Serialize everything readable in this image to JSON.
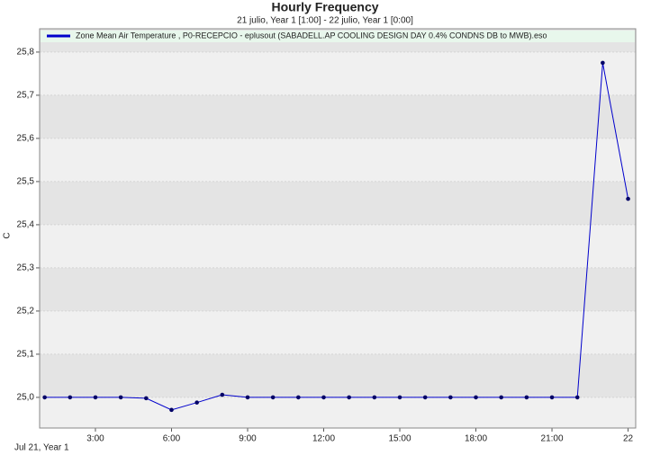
{
  "chart_data": {
    "type": "line",
    "title": "Hourly Frequency",
    "subtitle": "21 julio, Year 1 [1:00] - 22 julio, Year 1 [0:00]",
    "y_label": "C",
    "x_footer": "Jul 21, Year 1",
    "x": [
      1,
      2,
      3,
      4,
      5,
      6,
      7,
      8,
      9,
      10,
      11,
      12,
      13,
      14,
      15,
      16,
      17,
      18,
      19,
      20,
      21,
      22,
      23,
      24
    ],
    "series": [
      {
        "name": "Zone Mean Air Temperature , P0-RECEPCIO - eplusout (SABADELL.AP COOLING DESIGN DAY 0.4% CONDNS DB to MWB).eso",
        "color": "#0000cc",
        "values": [
          25.0,
          25.0,
          25.0,
          25.0,
          24.998,
          24.971,
          24.988,
          25.006,
          25.0,
          25.0,
          25.0,
          25.0,
          25.0,
          25.0,
          25.0,
          25.0,
          25.0,
          25.0,
          25.0,
          25.0,
          25.0,
          25.0,
          25.775,
          25.46
        ]
      }
    ],
    "xlim": [
      0.8,
      24.3
    ],
    "xticks": [
      {
        "value": 3,
        "label": "3:00"
      },
      {
        "value": 6,
        "label": "6:00"
      },
      {
        "value": 9,
        "label": "9:00"
      },
      {
        "value": 12,
        "label": "12:00"
      },
      {
        "value": 15,
        "label": "15:00"
      },
      {
        "value": 18,
        "label": "18:00"
      },
      {
        "value": 21,
        "label": "21:00"
      },
      {
        "value": 24,
        "label": "22"
      }
    ],
    "ylim": [
      24.929,
      25.854
    ],
    "yticks": [
      {
        "value": 25.0,
        "label": "25,0"
      },
      {
        "value": 25.1,
        "label": "25,1"
      },
      {
        "value": 25.2,
        "label": "25,2"
      },
      {
        "value": 25.3,
        "label": "25,3"
      },
      {
        "value": 25.4,
        "label": "25,4"
      },
      {
        "value": 25.5,
        "label": "25,5"
      },
      {
        "value": 25.6,
        "label": "25,6"
      },
      {
        "value": 25.7,
        "label": "25,7"
      },
      {
        "value": 25.8,
        "label": "25,8"
      }
    ],
    "grid": true
  }
}
